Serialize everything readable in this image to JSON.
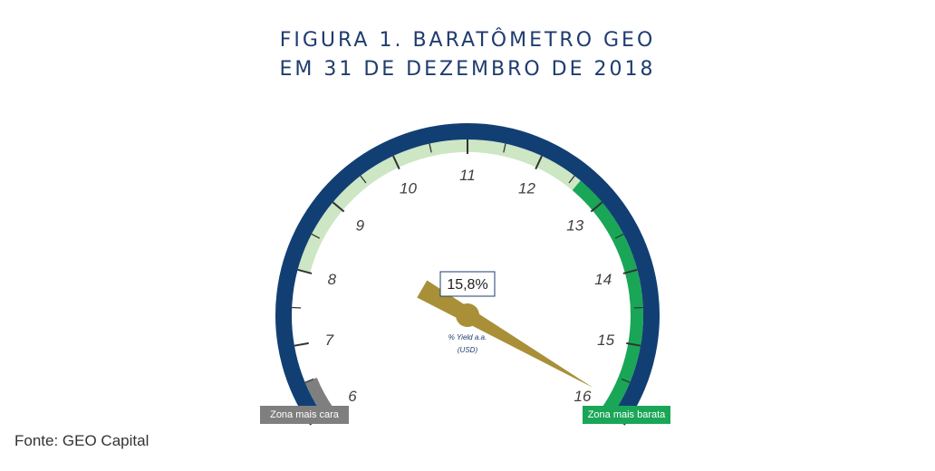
{
  "title_line1": "FIGURA 1. BARATÔMETRO GEO",
  "title_line2": "EM 31 DE DEZEMBRO DE 2018",
  "source": "Fonte: GEO Capital",
  "chart_data": {
    "type": "gauge",
    "min": 6,
    "max": 16,
    "value": 15.8,
    "value_label": "15,8%",
    "center_label_line1": "% Yield a.a.",
    "center_label_line2": "(USD)",
    "tick_labels": [
      "6",
      "7",
      "8",
      "9",
      "10",
      "11",
      "12",
      "13",
      "14",
      "15",
      "16"
    ],
    "bands": [
      {
        "from": 6,
        "to": 6.5,
        "color": "#7f7f7f"
      },
      {
        "from": 6.5,
        "to": 8,
        "color": "#ffffff"
      },
      {
        "from": 8,
        "to": 12.6,
        "color": "#cde6c4"
      },
      {
        "from": 12.6,
        "to": 16,
        "color": "#1aa657"
      }
    ],
    "zones": [
      {
        "label": "Zona mais cara",
        "color": "#7f7f7f"
      },
      {
        "label": "Zona mais barata",
        "color": "#1aa657"
      }
    ],
    "colors": {
      "outer_ring": "#123f73",
      "needle": "#a98f37",
      "title": "#1f3c6e"
    }
  }
}
